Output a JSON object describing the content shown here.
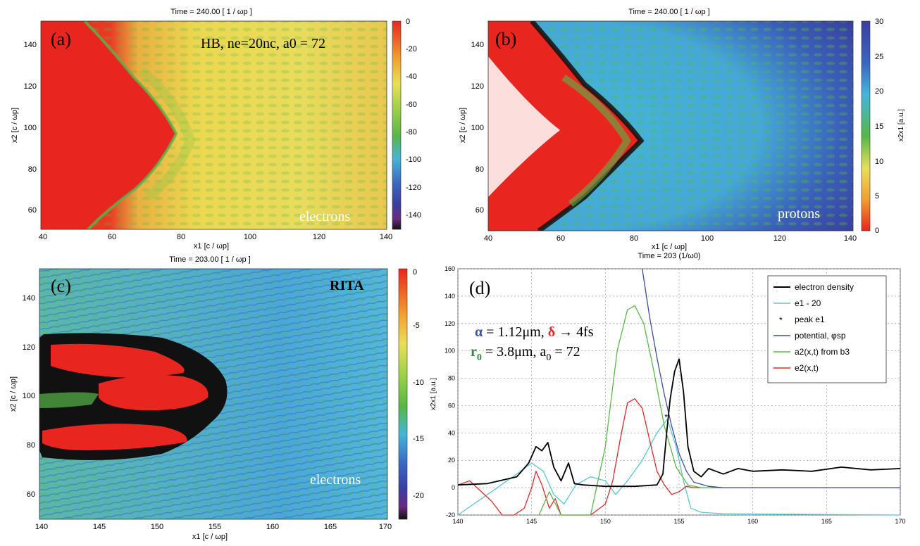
{
  "panels": {
    "a": {
      "tag": "(a)",
      "top_title": "Time =  240.00 [ 1 / ωp ]",
      "annotation": "HB, ne=20nc, a0 = 72",
      "corner_label": "electrons",
      "xlabel": "x1 [c / ωp]",
      "ylabel": "x2 [c / ωp]",
      "xticks": [
        "40",
        "60",
        "80",
        "100",
        "120",
        "140"
      ],
      "yticks": [
        "60",
        "80",
        "100",
        "120",
        "140"
      ],
      "colorbar_ticks": [
        "0",
        "-20",
        "-40",
        "-60",
        "-80",
        "-100",
        "-120",
        "-140"
      ]
    },
    "b": {
      "tag": "(b)",
      "top_title": "Time =  240.00 [ 1 / ωp ]",
      "corner_label": "protons",
      "xlabel": "x1 [c / ωp]",
      "ylabel": "x2 [c / ωp]",
      "colorbar_label": "x2x1 [a.u.]",
      "bottom_title": "Time = 203 (1/ω0)",
      "xticks": [
        "40",
        "60",
        "80",
        "100",
        "120",
        "140"
      ],
      "yticks": [
        "60",
        "80",
        "100",
        "120",
        "140"
      ],
      "colorbar_ticks": [
        "30",
        "25",
        "20",
        "15",
        "10",
        "5",
        "0"
      ]
    },
    "c": {
      "tag": "(c)",
      "top_title": "Time =  203.00 [ 1 / ωp ]",
      "annotation": "RITA",
      "corner_label": "electrons",
      "xlabel": "x1 [c / ωp]",
      "ylabel": "x2 [c / ωp]",
      "xticks": [
        "140",
        "145",
        "150",
        "155",
        "160",
        "165",
        "170"
      ],
      "yticks": [
        "60",
        "80",
        "100",
        "120",
        "140"
      ],
      "colorbar_ticks": [
        "0",
        "-5",
        "-10",
        "-15",
        "-20"
      ]
    },
    "d": {
      "tag": "(d)",
      "ylabel": "x2x1 [a.u.]",
      "param_line1": "α = 1.12μm, δ → 4fs",
      "param_line2": "r0 = 3.8μm, a0 = 72"
    }
  },
  "chart_data": [
    {
      "type": "heatmap",
      "title": "Time = 240.00 [ 1 / ωp ]",
      "xlabel": "x1 [c / ωp]",
      "ylabel": "x2 [c / ωp]",
      "xlim": [
        40,
        140
      ],
      "ylim": [
        50,
        150
      ],
      "colorbar_range": [
        -150,
        0
      ],
      "label": "electrons"
    },
    {
      "type": "heatmap",
      "title": "Time = 240.00 [ 1 / ωp ]",
      "xlabel": "x1 [c / ωp]",
      "ylabel": "x2 [c / ωp]",
      "xlim": [
        40,
        140
      ],
      "ylim": [
        50,
        150
      ],
      "colorbar_range": [
        0,
        30
      ],
      "label": "protons"
    },
    {
      "type": "heatmap",
      "title": "Time = 203.00 [ 1 / ωp ]",
      "xlabel": "x1 [c / ωp]",
      "ylabel": "x2 [c / ωp]",
      "xlim": [
        140,
        170
      ],
      "ylim": [
        50,
        150
      ],
      "colorbar_range": [
        -22,
        0
      ],
      "label": "electrons"
    },
    {
      "type": "line",
      "title": "Time = 203 (1/ω0)",
      "xlabel": "",
      "ylabel": "x2x1 [a.u.]",
      "xlim": [
        140,
        170
      ],
      "ylim": [
        -20,
        160
      ],
      "xticks": [
        140,
        145,
        150,
        155,
        160,
        165,
        170
      ],
      "yticks": [
        -20,
        0,
        20,
        40,
        60,
        80,
        100,
        120,
        140,
        160
      ],
      "grid": true,
      "legend_position": "top-right",
      "series": [
        {
          "name": "electron density",
          "color": "#000000",
          "x": [
            140,
            142,
            144,
            144.8,
            145.3,
            145.7,
            146.1,
            146.5,
            147,
            147.5,
            147.9,
            148.5,
            150,
            152,
            153.5,
            153.9,
            154.2,
            154.4,
            154.7,
            155,
            155.3,
            155.6,
            156,
            156.5,
            157,
            158,
            159,
            160,
            162,
            164,
            166,
            168,
            170
          ],
          "y": [
            2,
            3,
            8,
            18,
            30,
            27,
            33,
            15,
            5,
            18,
            3,
            2,
            1,
            1,
            2,
            10,
            45,
            65,
            85,
            94,
            70,
            30,
            12,
            8,
            14,
            10,
            14,
            12,
            13,
            12,
            15,
            13,
            14
          ]
        },
        {
          "name": "e1 - 20",
          "color": "#5bc6d6",
          "x": [
            140,
            142,
            144,
            145,
            145.8,
            146.5,
            147.2,
            148,
            149,
            150,
            150.7,
            151.5,
            152.5,
            153.5,
            154.2,
            154.8,
            155.3,
            155.8,
            156.5,
            158,
            170
          ],
          "y": [
            -20,
            -5,
            10,
            18,
            12,
            -5,
            -12,
            2,
            8,
            5,
            -5,
            5,
            20,
            40,
            50,
            30,
            5,
            -15,
            -18,
            -19,
            -20
          ]
        },
        {
          "name": "peak e1",
          "color": "#000000",
          "marker": "*",
          "x": [
            154.2
          ],
          "y": [
            52
          ]
        },
        {
          "name": "potential, φsp",
          "color": "#3b4fa1",
          "x": [
            152.5,
            153,
            153.5,
            154,
            154.5,
            155,
            155.5,
            156,
            157,
            158,
            170
          ],
          "y": [
            160,
            125,
            95,
            68,
            45,
            25,
            12,
            4,
            1,
            0,
            0
          ]
        },
        {
          "name": "a2(x,t) from b3",
          "color": "#5ab84a",
          "x": [
            145.5,
            146.2,
            147,
            148,
            149,
            150,
            150.8,
            151.5,
            152,
            152.6,
            153.2,
            154,
            154.8,
            155.6,
            156.5,
            158,
            170
          ],
          "y": [
            -20,
            -3,
            -20,
            -20,
            -20,
            30,
            100,
            130,
            133,
            120,
            90,
            45,
            15,
            2,
            0,
            0,
            0
          ]
        },
        {
          "name": "e2(x,t)",
          "color": "#e02a2a",
          "x": [
            140,
            140.8,
            141.5,
            142.3,
            143,
            143.8,
            144.5,
            145,
            145.3,
            145.7,
            146.2,
            146.6,
            147,
            147.5,
            148.2,
            149,
            150,
            150.5,
            151,
            151.5,
            152,
            152.5,
            153,
            153.5,
            154,
            154.5,
            155,
            155.5,
            156,
            158,
            170
          ],
          "y": [
            2,
            5,
            -2,
            -10,
            -20,
            -20,
            -15,
            0,
            12,
            2,
            -15,
            -8,
            -20,
            -20,
            -20,
            -20,
            -12,
            5,
            35,
            62,
            65,
            58,
            35,
            12,
            2,
            -5,
            -3,
            1,
            0,
            0,
            0
          ]
        }
      ]
    }
  ],
  "colors": {
    "heat_red": "#e8261f",
    "heat_yellow": "#e8df5a",
    "heat_green": "#57b64a",
    "heat_cyan": "#45b5d8",
    "heat_blue": "#3a3f9e",
    "heat_black": "#111111"
  }
}
